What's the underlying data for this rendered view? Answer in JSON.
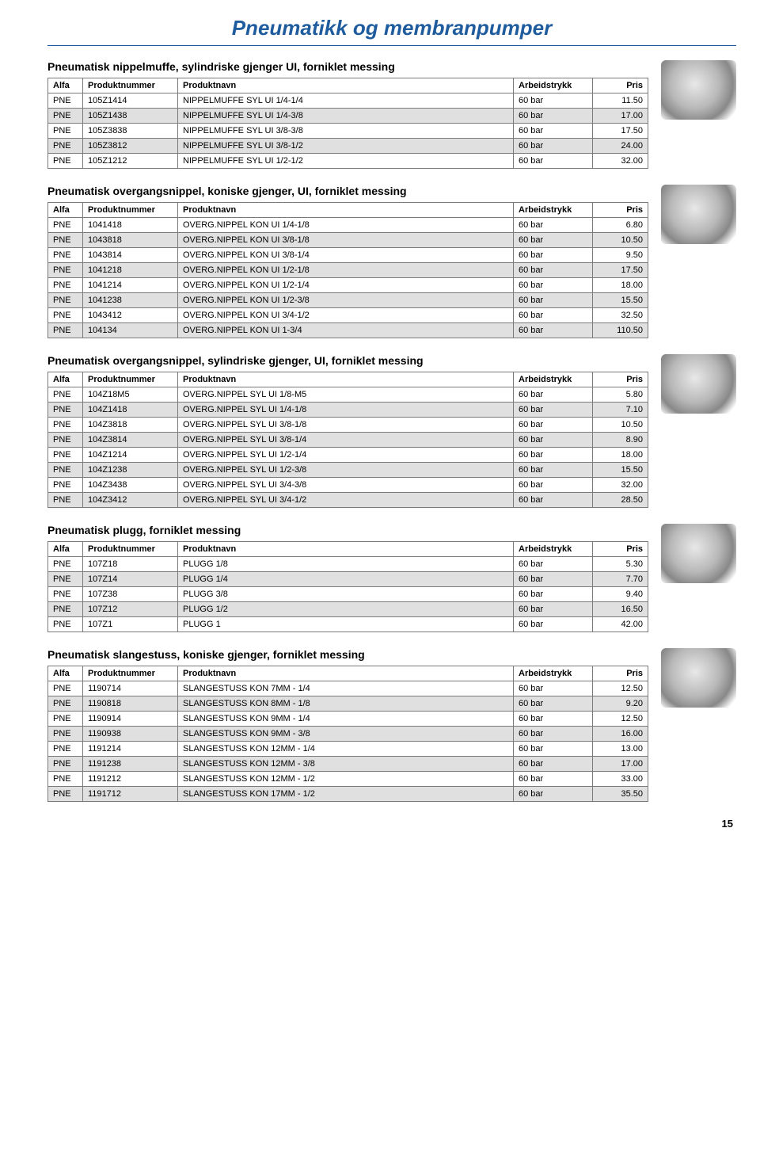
{
  "page": {
    "title": "Pneumatikk og membranpumper",
    "number": "15"
  },
  "columns": [
    "Alfa",
    "Produktnummer",
    "Produktnavn",
    "Arbeidstrykk",
    "Pris"
  ],
  "sections": [
    {
      "title": "Pneumatisk nippelmuffe, sylindriske gjenger UI, forniklet messing",
      "rows": [
        {
          "alfa": "PNE",
          "pn": "105Z1414",
          "name": "NIPPELMUFFE SYL UI 1/4-1/4",
          "at": "60 bar",
          "price": "11.50",
          "shaded": false
        },
        {
          "alfa": "PNE",
          "pn": "105Z1438",
          "name": "NIPPELMUFFE SYL UI 1/4-3/8",
          "at": "60 bar",
          "price": "17.00",
          "shaded": true
        },
        {
          "alfa": "PNE",
          "pn": "105Z3838",
          "name": "NIPPELMUFFE SYL UI 3/8-3/8",
          "at": "60 bar",
          "price": "17.50",
          "shaded": false
        },
        {
          "alfa": "PNE",
          "pn": "105Z3812",
          "name": "NIPPELMUFFE SYL UI 3/8-1/2",
          "at": "60 bar",
          "price": "24.00",
          "shaded": true
        },
        {
          "alfa": "PNE",
          "pn": "105Z1212",
          "name": "NIPPELMUFFE SYL UI 1/2-1/2",
          "at": "60 bar",
          "price": "32.00",
          "shaded": false
        }
      ]
    },
    {
      "title": "Pneumatisk overgangsnippel, koniske gjenger, UI, forniklet messing",
      "rows": [
        {
          "alfa": "PNE",
          "pn": "1041418",
          "name": "OVERG.NIPPEL KON UI 1/4-1/8",
          "at": "60 bar",
          "price": "6.80",
          "shaded": false
        },
        {
          "alfa": "PNE",
          "pn": "1043818",
          "name": "OVERG.NIPPEL KON UI 3/8-1/8",
          "at": "60 bar",
          "price": "10.50",
          "shaded": true
        },
        {
          "alfa": "PNE",
          "pn": "1043814",
          "name": "OVERG.NIPPEL KON UI 3/8-1/4",
          "at": "60 bar",
          "price": "9.50",
          "shaded": false
        },
        {
          "alfa": "PNE",
          "pn": "1041218",
          "name": "OVERG.NIPPEL KON UI 1/2-1/8",
          "at": "60 bar",
          "price": "17.50",
          "shaded": true
        },
        {
          "alfa": "PNE",
          "pn": "1041214",
          "name": "OVERG.NIPPEL KON UI 1/2-1/4",
          "at": "60 bar",
          "price": "18.00",
          "shaded": false
        },
        {
          "alfa": "PNE",
          "pn": "1041238",
          "name": "OVERG.NIPPEL KON UI 1/2-3/8",
          "at": "60 bar",
          "price": "15.50",
          "shaded": true
        },
        {
          "alfa": "PNE",
          "pn": "1043412",
          "name": "OVERG.NIPPEL KON UI 3/4-1/2",
          "at": "60 bar",
          "price": "32.50",
          "shaded": false
        },
        {
          "alfa": "PNE",
          "pn": "104134",
          "name": "OVERG.NIPPEL KON UI 1-3/4",
          "at": "60 bar",
          "price": "110.50",
          "shaded": true
        }
      ]
    },
    {
      "title": "Pneumatisk overgangsnippel, sylindriske gjenger, UI, forniklet messing",
      "rows": [
        {
          "alfa": "PNE",
          "pn": "104Z18M5",
          "name": "OVERG.NIPPEL SYL UI 1/8-M5",
          "at": "60 bar",
          "price": "5.80",
          "shaded": false
        },
        {
          "alfa": "PNE",
          "pn": "104Z1418",
          "name": "OVERG.NIPPEL SYL UI 1/4-1/8",
          "at": "60 bar",
          "price": "7.10",
          "shaded": true
        },
        {
          "alfa": "PNE",
          "pn": "104Z3818",
          "name": "OVERG.NIPPEL SYL UI 3/8-1/8",
          "at": "60 bar",
          "price": "10.50",
          "shaded": false
        },
        {
          "alfa": "PNE",
          "pn": "104Z3814",
          "name": "OVERG.NIPPEL SYL UI 3/8-1/4",
          "at": "60 bar",
          "price": "8.90",
          "shaded": true
        },
        {
          "alfa": "PNE",
          "pn": "104Z1214",
          "name": "OVERG.NIPPEL SYL UI 1/2-1/4",
          "at": "60 bar",
          "price": "18.00",
          "shaded": false
        },
        {
          "alfa": "PNE",
          "pn": "104Z1238",
          "name": "OVERG.NIPPEL SYL UI 1/2-3/8",
          "at": "60 bar",
          "price": "15.50",
          "shaded": true
        },
        {
          "alfa": "PNE",
          "pn": "104Z3438",
          "name": "OVERG.NIPPEL SYL UI 3/4-3/8",
          "at": "60 bar",
          "price": "32.00",
          "shaded": false
        },
        {
          "alfa": "PNE",
          "pn": "104Z3412",
          "name": "OVERG.NIPPEL SYL UI 3/4-1/2",
          "at": "60 bar",
          "price": "28.50",
          "shaded": true
        }
      ]
    },
    {
      "title": "Pneumatisk plugg, forniklet messing",
      "rows": [
        {
          "alfa": "PNE",
          "pn": "107Z18",
          "name": "PLUGG 1/8",
          "at": "60 bar",
          "price": "5.30",
          "shaded": false
        },
        {
          "alfa": "PNE",
          "pn": "107Z14",
          "name": "PLUGG 1/4",
          "at": "60 bar",
          "price": "7.70",
          "shaded": true
        },
        {
          "alfa": "PNE",
          "pn": "107Z38",
          "name": "PLUGG 3/8",
          "at": "60 bar",
          "price": "9.40",
          "shaded": false
        },
        {
          "alfa": "PNE",
          "pn": "107Z12",
          "name": "PLUGG 1/2",
          "at": "60 bar",
          "price": "16.50",
          "shaded": true
        },
        {
          "alfa": "PNE",
          "pn": "107Z1",
          "name": "PLUGG 1",
          "at": "60 bar",
          "price": "42.00",
          "shaded": false
        }
      ]
    },
    {
      "title": "Pneumatisk slangestuss, koniske gjenger, forniklet messing",
      "rows": [
        {
          "alfa": "PNE",
          "pn": "1190714",
          "name": "SLANGESTUSS KON 7MM - 1/4",
          "at": "60 bar",
          "price": "12.50",
          "shaded": false
        },
        {
          "alfa": "PNE",
          "pn": "1190818",
          "name": "SLANGESTUSS KON 8MM - 1/8",
          "at": "60 bar",
          "price": "9.20",
          "shaded": true
        },
        {
          "alfa": "PNE",
          "pn": "1190914",
          "name": "SLANGESTUSS KON 9MM - 1/4",
          "at": "60 bar",
          "price": "12.50",
          "shaded": false
        },
        {
          "alfa": "PNE",
          "pn": "1190938",
          "name": "SLANGESTUSS KON 9MM - 3/8",
          "at": "60 bar",
          "price": "16.00",
          "shaded": true
        },
        {
          "alfa": "PNE",
          "pn": "1191214",
          "name": "SLANGESTUSS KON 12MM - 1/4",
          "at": "60 bar",
          "price": "13.00",
          "shaded": false
        },
        {
          "alfa": "PNE",
          "pn": "1191238",
          "name": "SLANGESTUSS KON 12MM - 3/8",
          "at": "60 bar",
          "price": "17.00",
          "shaded": true
        },
        {
          "alfa": "PNE",
          "pn": "1191212",
          "name": "SLANGESTUSS KON 12MM - 1/2",
          "at": "60 bar",
          "price": "33.00",
          "shaded": false
        },
        {
          "alfa": "PNE",
          "pn": "1191712",
          "name": "SLANGESTUSS KON 17MM - 1/2",
          "at": "60 bar",
          "price": "35.50",
          "shaded": true
        }
      ]
    }
  ]
}
